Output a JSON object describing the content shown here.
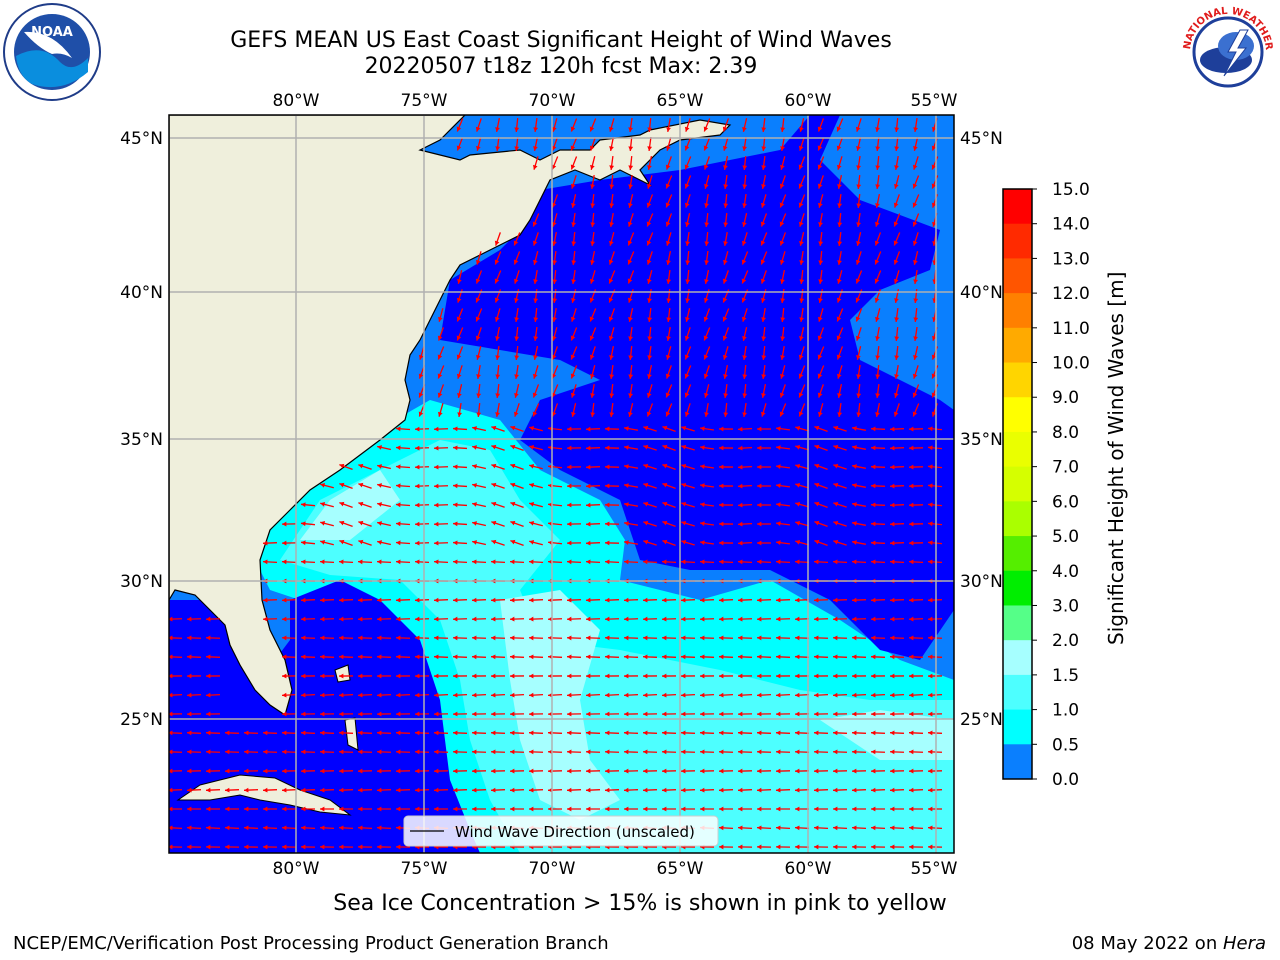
{
  "header": {
    "title_line1": "GEFS MEAN US East Coast Significant Height of Wind Waves",
    "title_line2": "20220507 t18z 120h fcst   Max: 2.39"
  },
  "logos": {
    "left": "noaa-logo",
    "left_text": "NOAA",
    "right": "nws-logo",
    "right_text": "NATIONAL WEATHER SERVICE"
  },
  "map": {
    "lon_labels": [
      "80°W",
      "75°W",
      "70°W",
      "65°W",
      "60°W",
      "55°W"
    ],
    "lat_labels": [
      "45°N",
      "40°N",
      "35°N",
      "30°N",
      "25°N"
    ],
    "legend_text": "Wind Wave Direction (unscaled)",
    "colors": {
      "land": "#efefdc",
      "ocean_0": "#0000ff",
      "ocean_05": "#0a7ffe",
      "ocean_1": "#00ffff",
      "ocean_15": "#4dffff",
      "ocean_2": "#a6ffff",
      "arrow": "#ff0000",
      "grid": "#b0b0b0"
    }
  },
  "colorbar": {
    "label": "Significant Height of Wind Waves [m]",
    "ticks": [
      "15.0",
      "14.0",
      "13.0",
      "12.0",
      "11.0",
      "10.0",
      "9.0",
      "8.0",
      "7.0",
      "6.0",
      "5.0",
      "4.0",
      "3.0",
      "2.0",
      "1.5",
      "1.0",
      "0.5",
      "0.0"
    ],
    "colors": [
      "#ff0000",
      "#ff2a00",
      "#ff5500",
      "#ff8000",
      "#ffaa00",
      "#ffd500",
      "#ffff00",
      "#eaff00",
      "#d5ff00",
      "#aaff00",
      "#55ee00",
      "#00ee00",
      "#55ff88",
      "#a6ffff",
      "#4dffff",
      "#00ffff",
      "#0a7ffe",
      "#0000ff"
    ]
  },
  "footnote": "Sea Ice Concentration > 15% is shown in pink to yellow",
  "footer": {
    "left": "NCEP/EMC/Verification Post Processing Product Generation Branch",
    "right_date": "08 May 2022 on ",
    "right_host": "Hera"
  }
}
